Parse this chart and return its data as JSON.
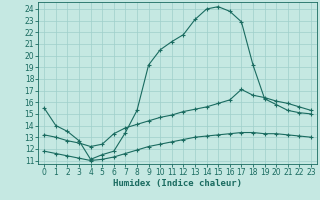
{
  "xlabel": "Humidex (Indice chaleur)",
  "background_color": "#c5e8e2",
  "grid_color": "#9fcfca",
  "line_color": "#1a6b60",
  "xlim": [
    -0.5,
    23.5
  ],
  "ylim": [
    10.7,
    24.6
  ],
  "yticks": [
    11,
    12,
    13,
    14,
    15,
    16,
    17,
    18,
    19,
    20,
    21,
    22,
    23,
    24
  ],
  "xticks": [
    0,
    1,
    2,
    3,
    4,
    5,
    6,
    7,
    8,
    9,
    10,
    11,
    12,
    13,
    14,
    15,
    16,
    17,
    18,
    19,
    20,
    21,
    22,
    23
  ],
  "line1_x": [
    0,
    1,
    2,
    3,
    4,
    5,
    6,
    7,
    8,
    9,
    10,
    11,
    12,
    13,
    14,
    15,
    16,
    17,
    18,
    19,
    20,
    21,
    22,
    23
  ],
  "line1_y": [
    15.5,
    14.0,
    13.5,
    12.7,
    11.1,
    11.5,
    11.8,
    13.4,
    15.3,
    19.2,
    20.5,
    21.2,
    21.8,
    23.1,
    24.0,
    24.2,
    23.8,
    22.9,
    19.2,
    16.3,
    15.8,
    15.3,
    15.1,
    15.0
  ],
  "line2_x": [
    0,
    1,
    2,
    3,
    4,
    5,
    6,
    7,
    8,
    9,
    10,
    11,
    12,
    13,
    14,
    15,
    16,
    17,
    18,
    19,
    20,
    21,
    22,
    23
  ],
  "line2_y": [
    13.2,
    13.0,
    12.7,
    12.5,
    12.2,
    12.4,
    13.3,
    13.8,
    14.1,
    14.4,
    14.7,
    14.9,
    15.2,
    15.4,
    15.6,
    15.9,
    16.2,
    17.1,
    16.6,
    16.4,
    16.1,
    15.9,
    15.6,
    15.3
  ],
  "line3_x": [
    0,
    1,
    2,
    3,
    4,
    5,
    6,
    7,
    8,
    9,
    10,
    11,
    12,
    13,
    14,
    15,
    16,
    17,
    18,
    19,
    20,
    21,
    22,
    23
  ],
  "line3_y": [
    11.8,
    11.6,
    11.4,
    11.2,
    11.0,
    11.1,
    11.3,
    11.6,
    11.9,
    12.2,
    12.4,
    12.6,
    12.8,
    13.0,
    13.1,
    13.2,
    13.3,
    13.4,
    13.4,
    13.3,
    13.3,
    13.2,
    13.1,
    13.0
  ],
  "lw": 0.8,
  "ms": 2.5,
  "mew": 0.8,
  "tick_fontsize": 5.5,
  "xlabel_fontsize": 6.5
}
